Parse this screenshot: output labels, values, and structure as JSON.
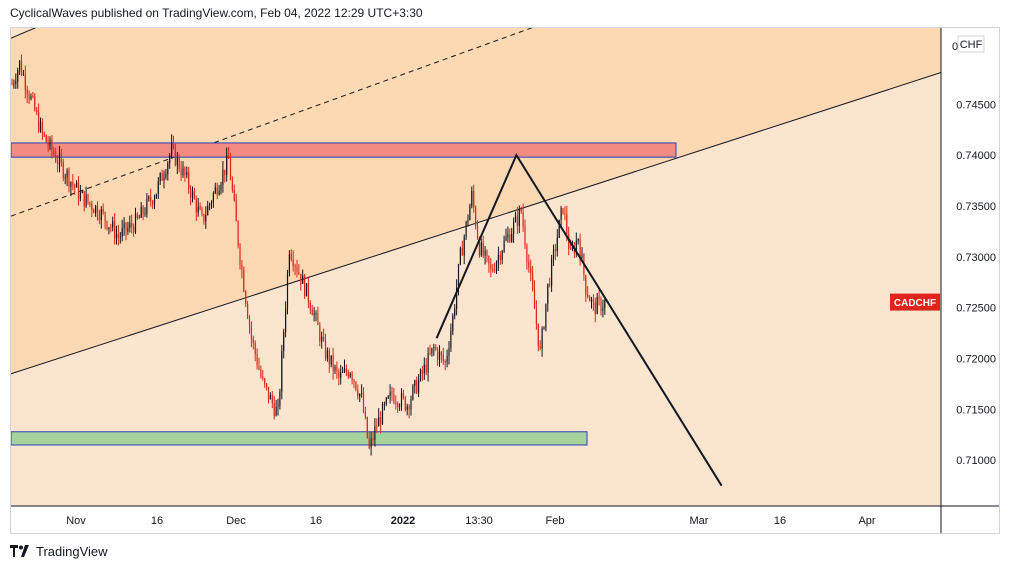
{
  "header": {
    "attribution": "CyclicalWaves published on TradingView.com, Feb 04, 2022 12:29 UTC+3:30"
  },
  "footer": {
    "brand": "TradingView"
  },
  "colors": {
    "background": "#fbe5cf",
    "channel_fill": "#fcd8b3",
    "up_candle": "#131722",
    "down_candle": "#e0241b",
    "resistance_zone": "#f28b82",
    "support_zone": "#a5d39b",
    "zone_border": "#2a3fb5",
    "label_bg": "#e0241b"
  },
  "chart_data": {
    "type": "candlestick",
    "symbol_label": "CADCHF",
    "price_axis_unit": "CHF",
    "x_tick_labels": [
      "Nov",
      "16",
      "Dec",
      "16",
      "2022",
      "13:30",
      "Feb",
      "Mar",
      "16",
      "Apr"
    ],
    "y_tick_labels": [
      "0.71000",
      "0.71500",
      "0.72000",
      "0.72500",
      "0.73000",
      "0.73500",
      "0.74000",
      "0.74500"
    ],
    "y_top_partial_label": "0",
    "y_range": [
      0.7055,
      0.7525
    ],
    "current_price": 0.7255,
    "resistance_zone": [
      0.7398,
      0.7412
    ],
    "support_zone": [
      0.7115,
      0.7128
    ],
    "price_path": [
      {
        "x": 0,
        "y": 0.747
      },
      {
        "x": 2,
        "y": 0.749
      },
      {
        "x": 5,
        "y": 0.7455
      },
      {
        "x": 8,
        "y": 0.742
      },
      {
        "x": 12,
        "y": 0.7395
      },
      {
        "x": 18,
        "y": 0.736
      },
      {
        "x": 23,
        "y": 0.7345
      },
      {
        "x": 28,
        "y": 0.732
      },
      {
        "x": 33,
        "y": 0.7335
      },
      {
        "x": 38,
        "y": 0.7365
      },
      {
        "x": 42,
        "y": 0.7405
      },
      {
        "x": 46,
        "y": 0.7375
      },
      {
        "x": 50,
        "y": 0.7335
      },
      {
        "x": 54,
        "y": 0.737
      },
      {
        "x": 57,
        "y": 0.7395
      },
      {
        "x": 60,
        "y": 0.73
      },
      {
        "x": 63,
        "y": 0.722
      },
      {
        "x": 66,
        "y": 0.7175
      },
      {
        "x": 70,
        "y": 0.7145
      },
      {
        "x": 73,
        "y": 0.731
      },
      {
        "x": 76,
        "y": 0.728
      },
      {
        "x": 79,
        "y": 0.725
      },
      {
        "x": 82,
        "y": 0.721
      },
      {
        "x": 86,
        "y": 0.718
      },
      {
        "x": 89,
        "y": 0.719
      },
      {
        "x": 92,
        "y": 0.716
      },
      {
        "x": 94,
        "y": 0.711
      },
      {
        "x": 96,
        "y": 0.7135
      },
      {
        "x": 100,
        "y": 0.7165
      },
      {
        "x": 104,
        "y": 0.7155
      },
      {
        "x": 108,
        "y": 0.7185
      },
      {
        "x": 111,
        "y": 0.721
      },
      {
        "x": 114,
        "y": 0.7195
      },
      {
        "x": 116,
        "y": 0.724
      },
      {
        "x": 118,
        "y": 0.73
      },
      {
        "x": 121,
        "y": 0.736
      },
      {
        "x": 123,
        "y": 0.731
      },
      {
        "x": 126,
        "y": 0.7285
      },
      {
        "x": 129,
        "y": 0.731
      },
      {
        "x": 132,
        "y": 0.733
      },
      {
        "x": 134,
        "y": 0.7345
      },
      {
        "x": 136,
        "y": 0.729
      },
      {
        "x": 138,
        "y": 0.7235
      },
      {
        "x": 139,
        "y": 0.7205
      },
      {
        "x": 141,
        "y": 0.727
      },
      {
        "x": 143,
        "y": 0.731
      },
      {
        "x": 145,
        "y": 0.735
      },
      {
        "x": 147,
        "y": 0.73
      },
      {
        "x": 149,
        "y": 0.732
      },
      {
        "x": 151,
        "y": 0.727
      },
      {
        "x": 153,
        "y": 0.725
      },
      {
        "x": 156,
        "y": 0.7255
      }
    ],
    "drawings": {
      "zigzag": [
        {
          "x": 112,
          "y": 0.722
        },
        {
          "x": 133,
          "y": 0.74
        },
        {
          "x": 187,
          "y": 0.7075
        }
      ],
      "channel_upper": [
        {
          "x": 0,
          "y": 0.7515
        },
        {
          "x": 22,
          "y": 0.755
        }
      ],
      "channel_mid_dashed": [
        {
          "x": 0,
          "y": 0.734
        },
        {
          "x": 148,
          "y": 0.754
        }
      ],
      "channel_lower": [
        {
          "x": 0,
          "y": 0.7185
        },
        {
          "x": 252,
          "y": 0.749
        }
      ]
    }
  }
}
